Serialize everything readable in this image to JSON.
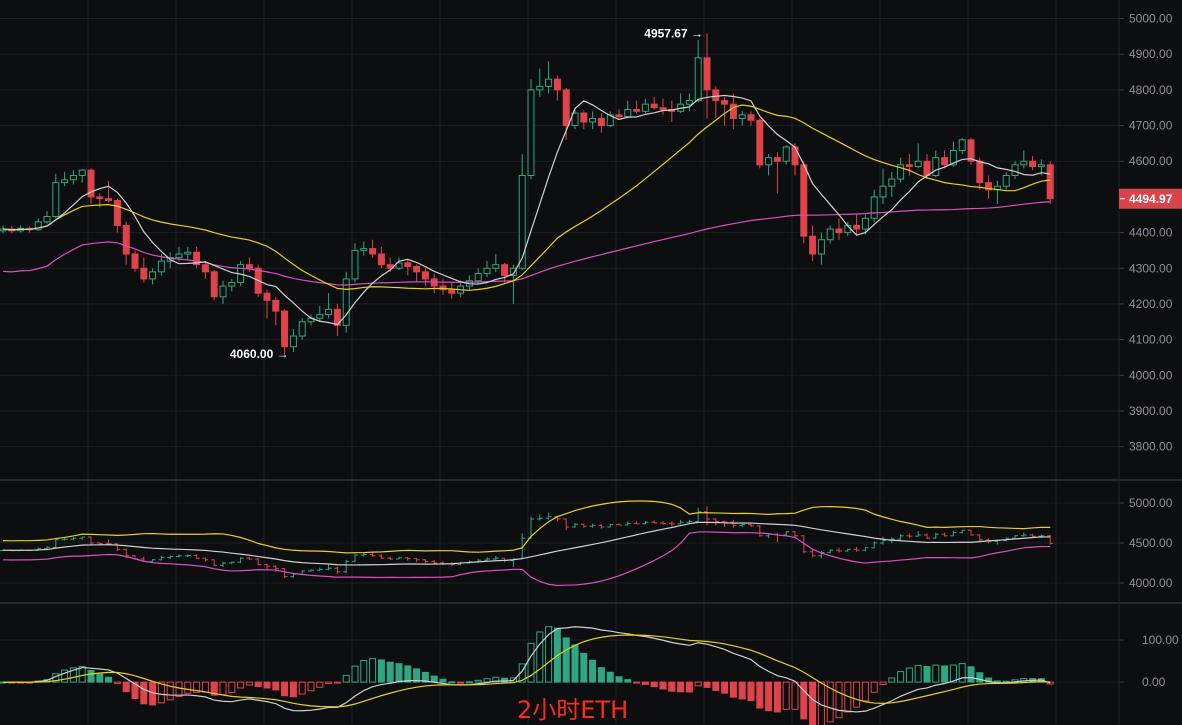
{
  "chart_data": {
    "type": "candlestick",
    "symbol_label": "2小时ETH",
    "colors": {
      "up": "#2ea784",
      "down": "#e0434a",
      "ma_short": "#d0d0d0",
      "ma_mid": "#e6d21a",
      "ma_long": "#d94fc0",
      "price_tag": "#d9434a",
      "background": "#0d0e10",
      "grid": "#1d1f23"
    },
    "last_price": "4494.97",
    "high_annotation": "4957.67",
    "low_annotation": "4060.00",
    "high_value": 4957.67,
    "low_value": 4060.0,
    "panels": {
      "main": {
        "ylim": [
          3712,
          5052
        ],
        "ticks": [
          5000,
          4900,
          4800,
          4700,
          4600,
          4400,
          4300,
          4200,
          4100,
          4000,
          3900,
          3800
        ],
        "tick_labels": [
          "5000.00",
          "4900.00",
          "4800.00",
          "4700.00",
          "4600.00",
          "4400.00",
          "4300.00",
          "4200.00",
          "4100.00",
          "4000.00",
          "3900.00",
          "3800.00"
        ]
      },
      "boll": {
        "ylim": [
          3750,
          5275
        ],
        "ticks": [
          5000,
          4500,
          4000
        ],
        "tick_labels": [
          "5000.00",
          "4500.00",
          "4000.00"
        ]
      },
      "macd": {
        "ylim": [
          -102,
          188
        ],
        "ticks": [
          100,
          0
        ],
        "tick_labels": [
          "100.00",
          "0.00"
        ]
      }
    },
    "candles": [
      [
        4405,
        4420,
        4398,
        4410
      ],
      [
        4410,
        4418,
        4398,
        4405
      ],
      [
        4405,
        4420,
        4400,
        4412
      ],
      [
        4412,
        4418,
        4400,
        4408
      ],
      [
        4408,
        4440,
        4405,
        4430
      ],
      [
        4430,
        4460,
        4425,
        4445
      ],
      [
        4445,
        4565,
        4440,
        4540
      ],
      [
        4540,
        4570,
        4530,
        4548
      ],
      [
        4548,
        4575,
        4535,
        4560
      ],
      [
        4560,
        4578,
        4540,
        4575
      ],
      [
        4575,
        4580,
        4480,
        4500
      ],
      [
        4500,
        4510,
        4470,
        4495
      ],
      [
        4495,
        4545,
        4485,
        4490
      ],
      [
        4490,
        4495,
        4400,
        4420
      ],
      [
        4420,
        4430,
        4310,
        4340
      ],
      [
        4340,
        4350,
        4290,
        4300
      ],
      [
        4300,
        4330,
        4260,
        4270
      ],
      [
        4270,
        4300,
        4255,
        4290
      ],
      [
        4290,
        4340,
        4280,
        4320
      ],
      [
        4320,
        4345,
        4300,
        4330
      ],
      [
        4330,
        4360,
        4320,
        4340
      ],
      [
        4340,
        4360,
        4325,
        4345
      ],
      [
        4345,
        4360,
        4300,
        4310
      ],
      [
        4310,
        4320,
        4270,
        4290
      ],
      [
        4290,
        4295,
        4210,
        4220
      ],
      [
        4220,
        4265,
        4200,
        4250
      ],
      [
        4250,
        4270,
        4235,
        4260
      ],
      [
        4260,
        4320,
        4250,
        4310
      ],
      [
        4310,
        4330,
        4290,
        4300
      ],
      [
        4300,
        4310,
        4220,
        4230
      ],
      [
        4230,
        4240,
        4160,
        4210
      ],
      [
        4210,
        4220,
        4140,
        4180
      ],
      [
        4180,
        4185,
        4060,
        4080
      ],
      [
        4080,
        4130,
        4065,
        4110
      ],
      [
        4110,
        4160,
        4100,
        4150
      ],
      [
        4150,
        4170,
        4140,
        4160
      ],
      [
        4160,
        4195,
        4150,
        4170
      ],
      [
        4170,
        4230,
        4160,
        4185
      ],
      [
        4185,
        4200,
        4110,
        4140
      ],
      [
        4140,
        4290,
        4120,
        4270
      ],
      [
        4270,
        4370,
        4260,
        4350
      ],
      [
        4350,
        4375,
        4335,
        4355
      ],
      [
        4355,
        4380,
        4330,
        4340
      ],
      [
        4340,
        4360,
        4300,
        4310
      ],
      [
        4310,
        4330,
        4290,
        4300
      ],
      [
        4300,
        4330,
        4295,
        4315
      ],
      [
        4315,
        4325,
        4280,
        4305
      ],
      [
        4305,
        4310,
        4260,
        4290
      ],
      [
        4290,
        4300,
        4250,
        4270
      ],
      [
        4270,
        4285,
        4230,
        4250
      ],
      [
        4250,
        4270,
        4225,
        4240
      ],
      [
        4240,
        4260,
        4215,
        4230
      ],
      [
        4230,
        4265,
        4220,
        4250
      ],
      [
        4250,
        4280,
        4240,
        4265
      ],
      [
        4265,
        4300,
        4255,
        4285
      ],
      [
        4285,
        4320,
        4275,
        4300
      ],
      [
        4300,
        4340,
        4290,
        4310
      ],
      [
        4310,
        4315,
        4260,
        4280
      ],
      [
        4280,
        4310,
        4200,
        4300
      ],
      [
        4300,
        4620,
        4295,
        4560
      ],
      [
        4560,
        4830,
        4550,
        4800
      ],
      [
        4800,
        4860,
        4780,
        4810
      ],
      [
        4810,
        4880,
        4790,
        4830
      ],
      [
        4830,
        4840,
        4770,
        4800
      ],
      [
        4800,
        4805,
        4660,
        4700
      ],
      [
        4700,
        4750,
        4690,
        4735
      ],
      [
        4735,
        4740,
        4690,
        4710
      ],
      [
        4710,
        4740,
        4690,
        4720
      ],
      [
        4720,
        4735,
        4680,
        4700
      ],
      [
        4700,
        4740,
        4695,
        4730
      ],
      [
        4730,
        4745,
        4720,
        4725
      ],
      [
        4725,
        4770,
        4720,
        4745
      ],
      [
        4745,
        4770,
        4735,
        4740
      ],
      [
        4740,
        4775,
        4735,
        4760
      ],
      [
        4760,
        4780,
        4745,
        4750
      ],
      [
        4750,
        4775,
        4730,
        4745
      ],
      [
        4745,
        4770,
        4710,
        4740
      ],
      [
        4740,
        4790,
        4735,
        4760
      ],
      [
        4760,
        4790,
        4740,
        4770
      ],
      [
        4770,
        4940,
        4765,
        4890
      ],
      [
        4890,
        4957.67,
        4720,
        4800
      ],
      [
        4800,
        4810,
        4720,
        4770
      ],
      [
        4770,
        4780,
        4700,
        4760
      ],
      [
        4760,
        4790,
        4690,
        4720
      ],
      [
        4720,
        4740,
        4700,
        4730
      ],
      [
        4730,
        4740,
        4700,
        4715
      ],
      [
        4715,
        4720,
        4580,
        4590
      ],
      [
        4590,
        4620,
        4560,
        4610
      ],
      [
        4610,
        4625,
        4510,
        4600
      ],
      [
        4600,
        4645,
        4590,
        4640
      ],
      [
        4640,
        4650,
        4560,
        4590
      ],
      [
        4590,
        4600,
        4370,
        4390
      ],
      [
        4390,
        4420,
        4320,
        4340
      ],
      [
        4340,
        4400,
        4310,
        4380
      ],
      [
        4380,
        4420,
        4370,
        4410
      ],
      [
        4410,
        4440,
        4380,
        4400
      ],
      [
        4400,
        4430,
        4390,
        4420
      ],
      [
        4420,
        4450,
        4390,
        4410
      ],
      [
        4410,
        4450,
        4395,
        4440
      ],
      [
        4440,
        4520,
        4430,
        4500
      ],
      [
        4500,
        4580,
        4480,
        4530
      ],
      [
        4530,
        4570,
        4500,
        4550
      ],
      [
        4550,
        4610,
        4540,
        4590
      ],
      [
        4590,
        4620,
        4560,
        4585
      ],
      [
        4585,
        4650,
        4580,
        4600
      ],
      [
        4600,
        4620,
        4550,
        4560
      ],
      [
        4560,
        4630,
        4555,
        4610
      ],
      [
        4610,
        4630,
        4580,
        4590
      ],
      [
        4590,
        4655,
        4585,
        4630
      ],
      [
        4630,
        4665,
        4620,
        4660
      ],
      [
        4660,
        4665,
        4590,
        4600
      ],
      [
        4600,
        4610,
        4520,
        4540
      ],
      [
        4540,
        4560,
        4495,
        4520
      ],
      [
        4520,
        4545,
        4480,
        4530
      ],
      [
        4530,
        4570,
        4520,
        4560
      ],
      [
        4560,
        4600,
        4550,
        4590
      ],
      [
        4590,
        4630,
        4580,
        4600
      ],
      [
        4600,
        4615,
        4575,
        4585
      ],
      [
        4585,
        4605,
        4560,
        4590
      ],
      [
        4590,
        4600,
        4480,
        4494.97
      ]
    ]
  }
}
